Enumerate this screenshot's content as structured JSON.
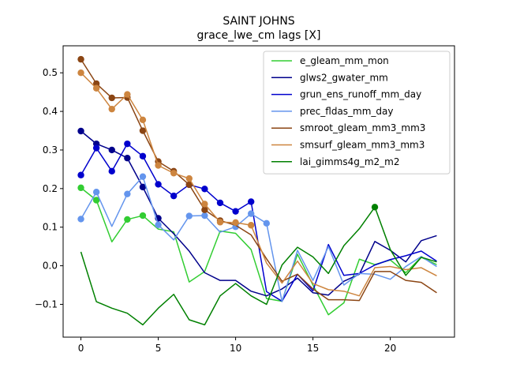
{
  "chart_data": {
    "type": "line",
    "title": "SAINT JOHNS",
    "subtitle": "grace_lwe_cm lags [X]",
    "xlabel": "",
    "ylabel": "",
    "xlim": [
      -1.15,
      24.15
    ],
    "ylim": [
      -0.185,
      0.57
    ],
    "xticks": [
      0,
      5,
      10,
      15,
      20
    ],
    "yticks": [
      -0.1,
      0.0,
      0.1,
      0.2,
      0.3,
      0.4,
      0.5
    ],
    "ytick_labels": [
      "−0.1",
      "0.0",
      "0.1",
      "0.2",
      "0.3",
      "0.4",
      "0.5"
    ],
    "grid": false,
    "legend_position": "top-right",
    "x": [
      0,
      1,
      2,
      3,
      4,
      5,
      6,
      7,
      8,
      9,
      10,
      11,
      12,
      13,
      14,
      15,
      16,
      17,
      18,
      19,
      20,
      21,
      22,
      23
    ],
    "series": [
      {
        "name": "e_gleam_mm_mon",
        "color": "#32cd32",
        "values": [
          0.202,
          0.17,
          0.062,
          0.12,
          0.13,
          0.095,
          0.088,
          -0.042,
          -0.015,
          0.09,
          0.084,
          0.042,
          -0.085,
          -0.092,
          0.03,
          -0.05,
          -0.127,
          -0.096,
          0.017,
          0.003,
          0.015,
          -0.018,
          0.022,
          0.003
        ],
        "markers": [
          0,
          1,
          3,
          4
        ]
      },
      {
        "name": "glws2_gwater_mm",
        "color": "#00008b",
        "values": [
          0.349,
          0.316,
          0.3,
          0.279,
          0.204,
          0.123,
          0.083,
          0.038,
          -0.018,
          -0.038,
          -0.038,
          -0.066,
          -0.078,
          -0.06,
          -0.032,
          -0.07,
          -0.076,
          -0.04,
          -0.022,
          0.063,
          0.04,
          0.01,
          0.065,
          0.078
        ],
        "markers": [
          0,
          1,
          2,
          3,
          4,
          5
        ]
      },
      {
        "name": "grun_ens_runoff_mm_day",
        "color": "#0000cd",
        "values": [
          0.235,
          0.305,
          0.245,
          0.316,
          0.284,
          0.211,
          0.181,
          0.21,
          0.199,
          0.163,
          0.141,
          0.166,
          -0.067,
          -0.092,
          -0.022,
          -0.065,
          0.055,
          -0.025,
          -0.02,
          0.002,
          0.016,
          0.026,
          0.038,
          0.012
        ],
        "markers": [
          0,
          1,
          2,
          3,
          4,
          5,
          6,
          7,
          8,
          9,
          10,
          11
        ]
      },
      {
        "name": "prec_fldas_mm_day",
        "color": "#6495ed",
        "values": [
          0.121,
          0.191,
          0.102,
          0.186,
          0.231,
          0.106,
          0.067,
          0.129,
          0.13,
          0.087,
          0.101,
          0.135,
          0.11,
          -0.093,
          0.04,
          -0.038,
          0.05,
          -0.05,
          -0.02,
          -0.022,
          -0.035,
          -0.002,
          0.024,
          -0.002
        ],
        "markers": [
          0,
          1,
          3,
          4,
          5,
          7,
          8,
          10,
          11,
          12
        ]
      },
      {
        "name": "smroot_gleam_mm3_mm3",
        "color": "#8b4513",
        "values": [
          0.535,
          0.472,
          0.435,
          0.436,
          0.35,
          0.27,
          0.245,
          0.21,
          0.145,
          0.117,
          0.105,
          0.08,
          0.018,
          -0.04,
          -0.022,
          -0.06,
          -0.088,
          -0.088,
          -0.09,
          -0.015,
          -0.015,
          -0.038,
          -0.043,
          -0.07
        ],
        "markers": [
          0,
          1,
          2,
          3,
          4,
          5,
          6,
          7,
          8,
          9
        ]
      },
      {
        "name": "smsurf_gleam_mm3_mm3",
        "color": "#cd853f",
        "values": [
          0.5,
          0.46,
          0.406,
          0.444,
          0.378,
          0.26,
          0.24,
          0.226,
          0.16,
          0.113,
          0.112,
          0.105,
          0.007,
          -0.045,
          0.012,
          -0.046,
          -0.062,
          -0.066,
          -0.078,
          -0.005,
          -0.002,
          -0.01,
          -0.005,
          -0.026
        ],
        "markers": [
          0,
          1,
          2,
          3,
          4,
          5,
          6,
          7,
          8,
          9,
          10,
          11
        ]
      },
      {
        "name": "lai_gimms4g_m2_m2",
        "color": "#008000",
        "values": [
          0.036,
          -0.093,
          -0.11,
          -0.123,
          -0.153,
          -0.11,
          -0.074,
          -0.14,
          -0.153,
          -0.078,
          -0.046,
          -0.078,
          -0.1,
          0.002,
          0.048,
          0.023,
          -0.02,
          0.052,
          0.096,
          0.152,
          0.042,
          -0.025,
          0.022,
          0.01
        ],
        "markers": [
          19
        ]
      }
    ]
  }
}
